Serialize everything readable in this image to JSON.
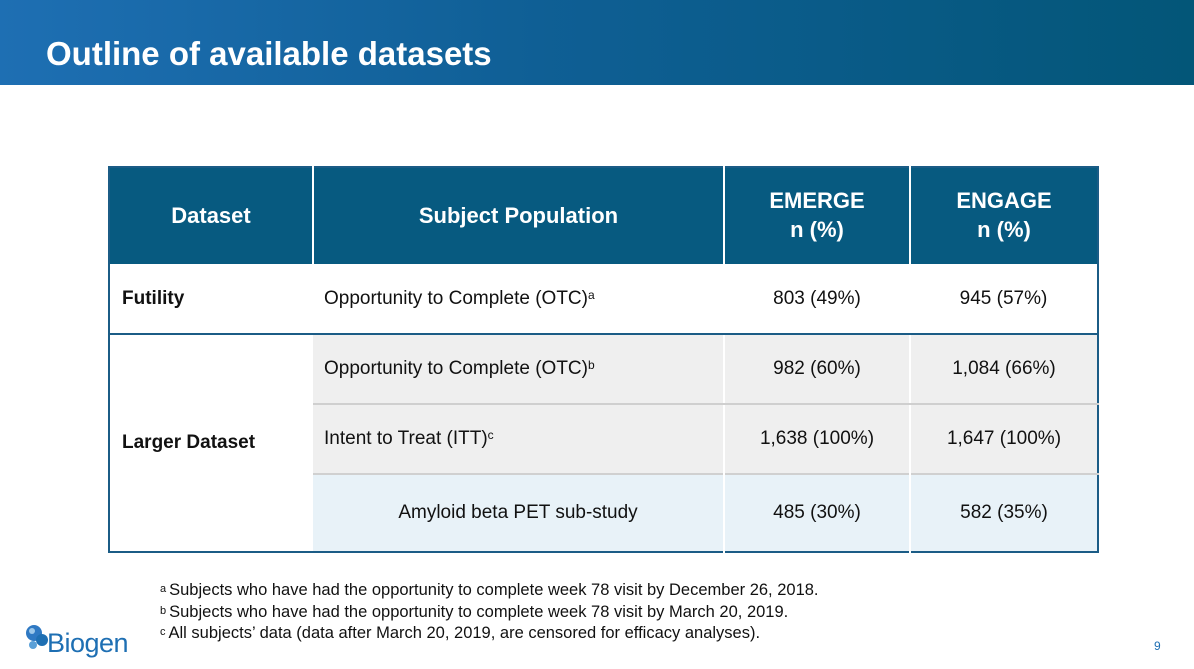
{
  "title": "Outline of available datasets",
  "table": {
    "headers": {
      "dataset": "Dataset",
      "population": "Subject Population",
      "emerge_l1": "EMERGE",
      "emerge_l2": "n (%)",
      "engage_l1": "ENGAGE",
      "engage_l2": "n (%)"
    },
    "rows": [
      {
        "dataset": "Futility",
        "population": "Opportunity to Complete (OTC)",
        "sup": "a",
        "emerge": "803 (49%)",
        "engage": "945 (57%)"
      },
      {
        "dataset": "Larger Dataset",
        "population": "Opportunity to Complete (OTC)",
        "sup": "b",
        "emerge": "982 (60%)",
        "engage": "1,084 (66%)"
      },
      {
        "dataset": "",
        "population": "Intent to Treat (ITT)",
        "sup": "c",
        "emerge": "1,638 (100%)",
        "engage": "1,647 (100%)"
      },
      {
        "dataset": "",
        "population": "Amyloid beta PET sub-study",
        "sup": "",
        "emerge": "485 (30%)",
        "engage": "582 (35%)"
      }
    ]
  },
  "footnotes": [
    {
      "mark": "a",
      "text": "Subjects who have had the opportunity to complete week 78 visit by December 26, 2018."
    },
    {
      "mark": "b",
      "text": "Subjects who have had the opportunity to complete week 78 visit by March 20, 2019."
    },
    {
      "mark": "c",
      "text": "All subjects’ data (data after March 20, 2019, are censored for efficacy analyses)."
    }
  ],
  "logo": {
    "text": "Biogen",
    "icon": "biogen-logo-icon",
    "color": "#1e6fb3"
  },
  "page_number": "9",
  "colors": {
    "header": "#075a80",
    "accent": "#1e6fb3"
  }
}
